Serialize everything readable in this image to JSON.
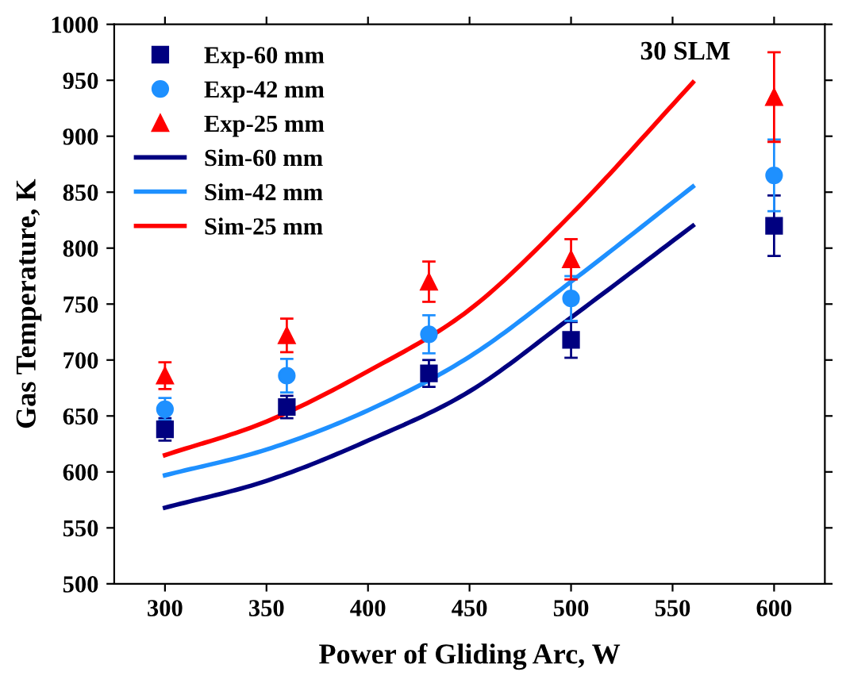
{
  "chart_data": {
    "type": "scatter",
    "xlabel": "Power of Gliding Arc, W",
    "ylabel": "Gas Temperature, K",
    "annotations": [
      "30 SLM"
    ],
    "xlim": [
      275,
      625
    ],
    "ylim": [
      500,
      1000
    ],
    "xticks": [
      300,
      350,
      400,
      450,
      500,
      550,
      600
    ],
    "yticks": [
      500,
      550,
      600,
      650,
      700,
      750,
      800,
      850,
      900,
      950,
      1000
    ],
    "grid": false,
    "legend": "top left",
    "series": [
      {
        "name": "Exp-60 mm",
        "marker": "square",
        "color": "#000080",
        "x": [
          300,
          360,
          430,
          500,
          600
        ],
        "values": [
          638,
          658,
          688,
          718,
          820
        ],
        "errors": [
          10,
          10,
          12,
          16,
          27
        ]
      },
      {
        "name": "Exp-42 mm",
        "marker": "circle",
        "color": "#1e90ff",
        "x": [
          300,
          360,
          430,
          500,
          600
        ],
        "values": [
          656,
          686,
          723,
          755,
          865
        ],
        "errors": [
          10,
          15,
          17,
          20,
          32
        ]
      },
      {
        "name": "Exp-25 mm",
        "marker": "triangle",
        "color": "#ff0000",
        "x": [
          300,
          360,
          430,
          500,
          600
        ],
        "values": [
          686,
          722,
          770,
          790,
          935
        ],
        "errors": [
          12,
          15,
          18,
          18,
          40
        ]
      },
      {
        "name": "Sim-60 mm",
        "type": "line",
        "color": "#000080",
        "x": [
          300,
          350,
          400,
          450,
          500,
          560
        ],
        "values": [
          568,
          592,
          628,
          672,
          738,
          820
        ]
      },
      {
        "name": "Sim-42 mm",
        "type": "line",
        "color": "#1e90ff",
        "x": [
          300,
          350,
          400,
          450,
          500,
          560
        ],
        "values": [
          597,
          620,
          655,
          703,
          770,
          855
        ]
      },
      {
        "name": "Sim-25 mm",
        "type": "line",
        "color": "#ff0000",
        "x": [
          300,
          350,
          400,
          450,
          500,
          560
        ],
        "values": [
          615,
          645,
          690,
          745,
          830,
          948
        ]
      }
    ]
  }
}
